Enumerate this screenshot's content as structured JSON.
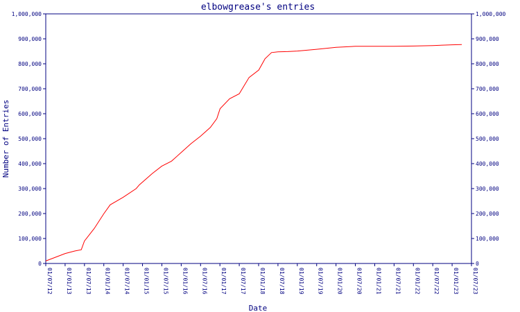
{
  "chart_data": {
    "type": "line",
    "title": "elbowgrease's entries",
    "xlabel": "Date",
    "ylabel": "Number of Entries",
    "x_tick_labels": [
      "01/07/12",
      "01/01/13",
      "01/07/13",
      "01/01/14",
      "01/07/14",
      "01/01/15",
      "01/07/15",
      "01/01/16",
      "01/07/16",
      "01/01/17",
      "01/07/17",
      "01/01/18",
      "01/07/18",
      "01/01/19",
      "01/07/19",
      "01/01/20",
      "01/07/20",
      "01/01/21",
      "01/07/21",
      "01/01/22",
      "01/07/22",
      "01/01/23",
      "01/07/23"
    ],
    "y_tick_labels": [
      "0",
      "100,000",
      "200,000",
      "300,000",
      "400,000",
      "500,000",
      "600,000",
      "700,000",
      "800,000",
      "900,000",
      "1,000,000"
    ],
    "ylim": [
      0,
      1000000
    ],
    "xlim": [
      "2012-07-01",
      "2023-07-01"
    ],
    "grid": false,
    "line_color": "#ff0000",
    "axis_color": "#000080",
    "series": [
      {
        "x": [
          "2012-07-01",
          "2012-10-01",
          "2013-01-01",
          "2013-04-01",
          "2013-06-01",
          "2013-07-01",
          "2013-10-01",
          "2014-01-01",
          "2014-03-01",
          "2014-07-01",
          "2014-11-01",
          "2014-12-01",
          "2015-04-01",
          "2015-07-01",
          "2015-10-01",
          "2016-01-01",
          "2016-04-01",
          "2016-07-01",
          "2016-10-01",
          "2016-12-01",
          "2017-01-01",
          "2017-04-01",
          "2017-07-01",
          "2017-10-01",
          "2018-01-01",
          "2018-03-01",
          "2018-05-01",
          "2018-07-01",
          "2018-10-01",
          "2019-01-01",
          "2019-07-01",
          "2020-01-01",
          "2020-07-01",
          "2021-01-01",
          "2021-07-01",
          "2022-01-01",
          "2022-07-01",
          "2023-01-01",
          "2023-04-01"
        ],
        "y": [
          10000,
          25000,
          40000,
          50000,
          55000,
          90000,
          140000,
          200000,
          235000,
          265000,
          300000,
          315000,
          360000,
          390000,
          410000,
          445000,
          480000,
          510000,
          545000,
          580000,
          620000,
          660000,
          680000,
          745000,
          775000,
          820000,
          845000,
          848000,
          849000,
          851000,
          858000,
          866000,
          870000,
          870000,
          870000,
          871000,
          873000,
          876000,
          877000
        ]
      }
    ]
  }
}
